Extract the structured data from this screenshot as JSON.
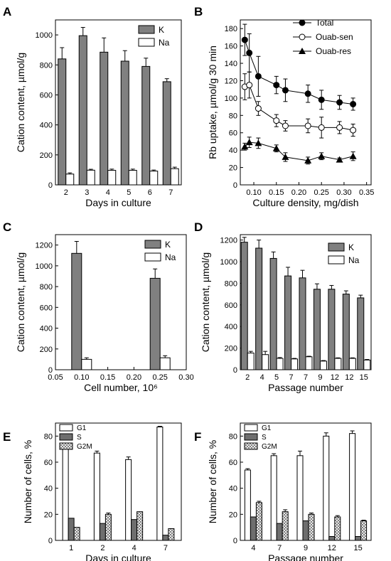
{
  "colors": {
    "dark_bar": "#808080",
    "light_bar": "#ffffff",
    "mid_bar": "#6e6e6e",
    "line": "#000000"
  },
  "chart_data": [
    {
      "panel": "A",
      "type": "bar",
      "categories": [
        "2",
        "3",
        "4",
        "5",
        "6",
        "7"
      ],
      "series": [
        {
          "name": "K",
          "values": [
            840,
            995,
            885,
            825,
            790,
            688
          ],
          "errors": [
            75,
            55,
            95,
            70,
            55,
            20
          ]
        },
        {
          "name": "Na",
          "values": [
            72,
            98,
            97,
            97,
            92,
            108
          ],
          "errors": [
            8,
            6,
            8,
            8,
            7,
            10
          ]
        }
      ],
      "xlabel": "Days in culture",
      "ylabel": "Cation content, µmol/g",
      "ylim": [
        0,
        1100
      ],
      "yticks": [
        0,
        200,
        400,
        600,
        800,
        1000
      ],
      "legend": "top-right"
    },
    {
      "panel": "B",
      "type": "line",
      "series": [
        {
          "name": "Total",
          "marker": "filled-circle",
          "x": [
            0.08,
            0.09,
            0.11,
            0.15,
            0.17,
            0.22,
            0.25,
            0.29,
            0.32
          ],
          "y": [
            167,
            152,
            125,
            115,
            109,
            105,
            98,
            95,
            93
          ],
          "errors": [
            18,
            22,
            23,
            10,
            13,
            10,
            11,
            8,
            7
          ]
        },
        {
          "name": "Ouab-sen",
          "marker": "open-circle",
          "x": [
            0.08,
            0.09,
            0.11,
            0.15,
            0.17,
            0.22,
            0.25,
            0.29,
            0.32
          ],
          "y": [
            113,
            115,
            88,
            74,
            68,
            68,
            66,
            66,
            63
          ],
          "errors": [
            15,
            15,
            8,
            7,
            6,
            8,
            12,
            7,
            7
          ]
        },
        {
          "name": "Ouab-res",
          "marker": "filled-triangle",
          "x": [
            0.08,
            0.09,
            0.11,
            0.15,
            0.17,
            0.22,
            0.25,
            0.29,
            0.32
          ],
          "y": [
            44,
            49,
            48,
            42,
            32,
            28,
            33,
            29,
            33
          ],
          "errors": [
            4,
            6,
            6,
            4,
            5,
            4,
            4,
            2,
            5
          ]
        }
      ],
      "xlabel": "Culture density,  mg/dish",
      "ylabel": "Rb uptake, µmol/g 30 min",
      "xlim": [
        0.07,
        0.36
      ],
      "ylim": [
        0,
        190
      ],
      "xticks": [
        "0.10",
        "0.15",
        "0.20",
        "0.25",
        "0.30",
        "0.35"
      ],
      "yticks": [
        0,
        20,
        40,
        60,
        80,
        100,
        120,
        140,
        160,
        180
      ],
      "legend": "top-right"
    },
    {
      "panel": "C",
      "type": "bar",
      "x_groups": [
        0.1,
        0.25
      ],
      "series": [
        {
          "name": "K",
          "values": [
            1120,
            880
          ],
          "errors": [
            115,
            90
          ]
        },
        {
          "name": "Na",
          "values": [
            100,
            115
          ],
          "errors": [
            15,
            20
          ]
        }
      ],
      "xlabel": "Cell number, 10⁶",
      "ylabel": "Cation content, µmol/g",
      "xlim": [
        0.05,
        0.3
      ],
      "ylim": [
        0,
        1300
      ],
      "xticks": [
        "0.05",
        "0.10",
        "0.15",
        "0.20",
        "0.25",
        "0.30"
      ],
      "yticks": [
        0,
        200,
        400,
        600,
        800,
        1000,
        1200
      ],
      "legend": "top-right"
    },
    {
      "panel": "D",
      "type": "bar",
      "categories": [
        "2",
        "4",
        "5",
        "7",
        "7",
        "9",
        "12",
        "12",
        "15"
      ],
      "series": [
        {
          "name": "K",
          "values": [
            1180,
            1125,
            1030,
            868,
            850,
            745,
            745,
            700,
            665
          ],
          "errors": [
            45,
            75,
            60,
            80,
            70,
            50,
            35,
            30,
            25
          ]
        },
        {
          "name": "Na",
          "values": [
            155,
            140,
            105,
            100,
            120,
            80,
            105,
            105,
            90
          ],
          "errors": [
            15,
            30,
            8,
            5,
            5,
            5,
            5,
            5,
            5
          ]
        }
      ],
      "xlabel": "Passage number",
      "ylabel": "Cation content, µmol/g",
      "ylim": [
        0,
        1250
      ],
      "yticks": [
        0,
        200,
        400,
        600,
        800,
        1000,
        1200
      ],
      "legend": "top-right"
    },
    {
      "panel": "E",
      "type": "bar",
      "categories": [
        "1",
        "2",
        "4",
        "7"
      ],
      "series": [
        {
          "name": "G1",
          "values": [
            73,
            67,
            62,
            87
          ],
          "errors": [
            1,
            1.5,
            2,
            0.5
          ]
        },
        {
          "name": "S",
          "values": [
            17,
            13,
            16,
            4
          ],
          "errors": [
            0,
            0,
            0,
            0
          ]
        },
        {
          "name": "G2M",
          "values": [
            10,
            20,
            22,
            9
          ],
          "errors": [
            0,
            1,
            0,
            0
          ]
        }
      ],
      "xlabel": "Days in culture",
      "ylabel": "Number of cells, %",
      "ylim": [
        0,
        90
      ],
      "yticks": [
        0,
        20,
        40,
        60,
        80
      ],
      "legend": "top-left"
    },
    {
      "panel": "F",
      "type": "bar",
      "categories": [
        "4",
        "7",
        "9",
        "12",
        "15"
      ],
      "series": [
        {
          "name": "G1",
          "values": [
            54,
            65,
            65,
            80,
            82
          ],
          "errors": [
            1,
            1.5,
            3.5,
            2.5,
            2
          ]
        },
        {
          "name": "S",
          "values": [
            18,
            13,
            15,
            3,
            3
          ],
          "errors": [
            0,
            0,
            0,
            0,
            0
          ]
        },
        {
          "name": "G2M",
          "values": [
            29,
            22,
            20,
            18,
            15
          ],
          "errors": [
            1,
            1.5,
            1,
            1,
            0.5
          ]
        }
      ],
      "xlabel": "Passage number",
      "ylabel": "Number of cells, %",
      "ylim": [
        0,
        90
      ],
      "yticks": [
        0,
        20,
        40,
        60,
        80
      ],
      "legend": "top-left"
    }
  ]
}
